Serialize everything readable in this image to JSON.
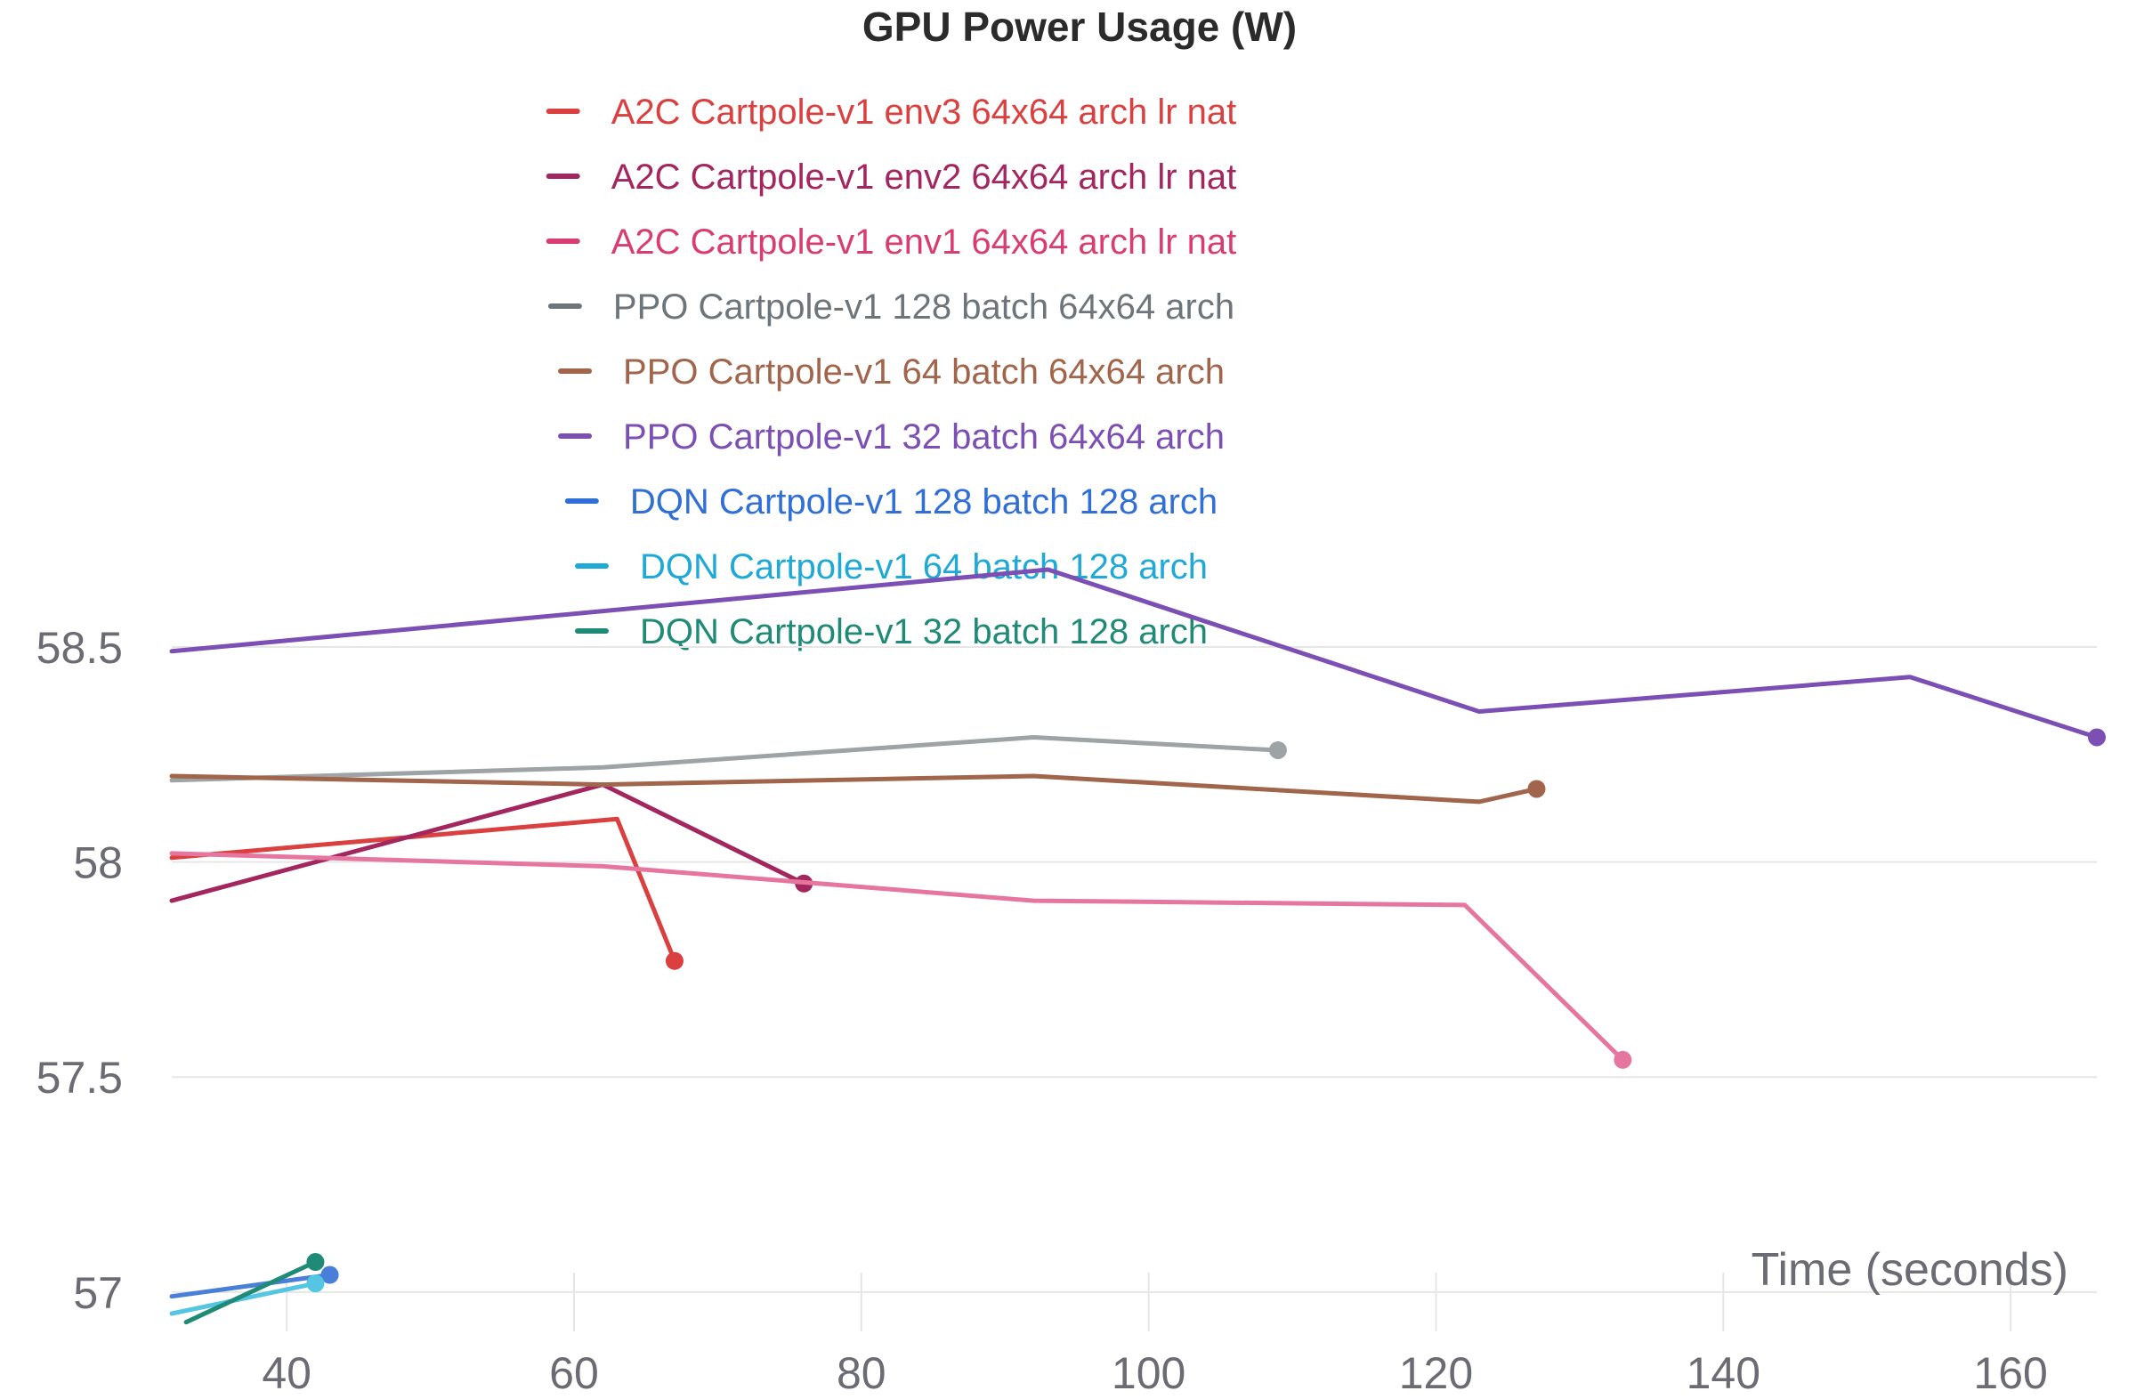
{
  "chart_data": {
    "type": "line",
    "title": "GPU Power Usage (W)",
    "xlabel": "Time (seconds)",
    "ylabel": "",
    "xlim": [
      32,
      166
    ],
    "ylim": [
      56.95,
      58.68
    ],
    "x_ticks": [
      40,
      60,
      80,
      100,
      120,
      140,
      160
    ],
    "y_ticks": [
      57,
      57.5,
      58,
      58.5
    ],
    "y_tick_labels": [
      "57",
      "57.5",
      "58",
      "58.5"
    ],
    "grid": true,
    "legend_position": "top",
    "series": [
      {
        "name": "A2C Cartpole-v1 env3 64x64 arch lr nat",
        "color": "#d9403f",
        "x": [
          32,
          63,
          67
        ],
        "y": [
          58.01,
          58.1,
          57.77
        ]
      },
      {
        "name": "A2C Cartpole-v1 env2 64x64 arch lr nat",
        "color": "#a3265e",
        "x": [
          32,
          62,
          76
        ],
        "y": [
          57.91,
          58.18,
          57.95
        ]
      },
      {
        "name": "A2C Cartpole-v1 env1 64x64 arch lr nat",
        "color": "#e6769f",
        "x": [
          32,
          62,
          92,
          122,
          133
        ],
        "y": [
          58.02,
          57.99,
          57.91,
          57.9,
          57.54
        ]
      },
      {
        "name": "PPO Cartpole-v1 128 batch 64x64 arch",
        "color": "#9ea3a6",
        "x": [
          32,
          62,
          92,
          109
        ],
        "y": [
          58.19,
          58.22,
          58.29,
          58.26
        ]
      },
      {
        "name": "PPO Cartpole-v1 64 batch 64x64 arch",
        "color": "#a0654a",
        "x": [
          32,
          62,
          92,
          123,
          127
        ],
        "y": [
          58.2,
          58.18,
          58.2,
          58.14,
          58.17
        ]
      },
      {
        "name": "PPO Cartpole-v1 32 batch 64x64 arch",
        "color": "#7b4fb3",
        "x": [
          32,
          93,
          123,
          153,
          166
        ],
        "y": [
          58.49,
          58.68,
          58.35,
          58.43,
          58.29
        ]
      },
      {
        "name": "DQN Cartpole-v1 128 batch 128 arch",
        "color": "#4a7fd9",
        "x": [
          32,
          43
        ],
        "y": [
          56.99,
          57.04
        ]
      },
      {
        "name": "DQN Cartpole-v1 64 batch 128 arch",
        "color": "#55c5e4",
        "x": [
          32,
          42
        ],
        "y": [
          56.95,
          57.02
        ]
      },
      {
        "name": "DQN Cartpole-v1 32 batch 128 arch",
        "color": "#1f8a76",
        "x": [
          33,
          42
        ],
        "y": [
          56.93,
          57.07
        ]
      }
    ]
  },
  "legend_colors": [
    "#d9403f",
    "#a3265e",
    "#d93d6f",
    "#6e757a",
    "#a0654a",
    "#7b4fb3",
    "#2f6fd6",
    "#1fa9d6",
    "#1f8a76"
  ]
}
